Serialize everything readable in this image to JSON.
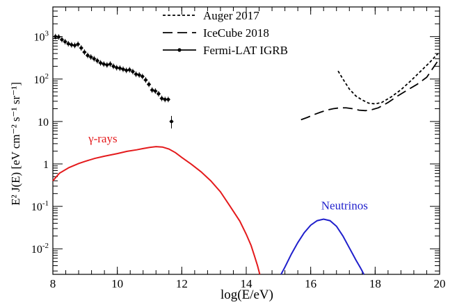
{
  "chart_data": {
    "type": "line",
    "title": "",
    "xlabel": "log(E/eV)",
    "ylabel": "E² J(E)  [eV cm⁻² s⁻¹ sr⁻¹]",
    "xscale": "linear",
    "yscale": "log",
    "xlim": [
      8,
      20
    ],
    "ylim": [
      0.0025,
      5000
    ],
    "grid": false,
    "legend_position": "top-center",
    "x_ticks": [
      {
        "value": 8,
        "label": "8"
      },
      {
        "value": 10,
        "label": "10"
      },
      {
        "value": 12,
        "label": "12"
      },
      {
        "value": 14,
        "label": "14"
      },
      {
        "value": 16,
        "label": "16"
      },
      {
        "value": 18,
        "label": "18"
      },
      {
        "value": 20,
        "label": "20"
      }
    ],
    "y_ticks": [
      {
        "value": 0.01,
        "base": "10",
        "exp": "-2"
      },
      {
        "value": 0.1,
        "base": "10",
        "exp": "-1"
      },
      {
        "value": 1,
        "base": "1",
        "exp": ""
      },
      {
        "value": 10,
        "base": "10",
        "exp": ""
      },
      {
        "value": 100,
        "base": "10",
        "exp": "2"
      },
      {
        "value": 1000,
        "base": "10",
        "exp": "3"
      }
    ],
    "legend": [
      {
        "label": "Auger 2017",
        "style": "dotted"
      },
      {
        "label": "IceCube 2018",
        "style": "dashed"
      },
      {
        "label": "Fermi-LAT IGRB",
        "style": "points"
      }
    ],
    "annotations": [
      {
        "text": "γ-rays",
        "color": "#e41a1c",
        "x": 9.55,
        "y": 3.2
      },
      {
        "text": "Neutrinos",
        "color": "#1f1fcc",
        "x": 17.05,
        "y": 0.085
      }
    ],
    "series": [
      {
        "name": "γ-rays",
        "color": "#e41a1c",
        "style": "solid",
        "x": [
          8.0,
          8.2,
          8.5,
          8.8,
          9.0,
          9.3,
          9.6,
          10.0,
          10.3,
          10.6,
          10.8,
          11.0,
          11.2,
          11.4,
          11.6,
          11.8,
          12.0,
          12.3,
          12.6,
          12.9,
          13.2,
          13.5,
          13.8,
          14.0,
          14.15,
          14.25,
          14.35,
          14.42
        ],
        "y": [
          0.4,
          0.6,
          0.82,
          1.02,
          1.15,
          1.35,
          1.52,
          1.75,
          1.98,
          2.15,
          2.3,
          2.45,
          2.55,
          2.5,
          2.25,
          1.85,
          1.42,
          0.98,
          0.65,
          0.4,
          0.22,
          0.1,
          0.045,
          0.022,
          0.012,
          0.007,
          0.004,
          0.0025
        ]
      },
      {
        "name": "Neutrinos",
        "color": "#1f1fcc",
        "style": "solid",
        "x": [
          15.08,
          15.2,
          15.4,
          15.6,
          15.8,
          16.0,
          16.2,
          16.4,
          16.6,
          16.8,
          17.0,
          17.2,
          17.4,
          17.55,
          17.65
        ],
        "y": [
          0.0025,
          0.0037,
          0.0075,
          0.014,
          0.024,
          0.036,
          0.046,
          0.05,
          0.046,
          0.034,
          0.02,
          0.0105,
          0.0055,
          0.0035,
          0.0025
        ]
      },
      {
        "name": "Auger 2017",
        "color": "#000000",
        "style": "dotted",
        "x": [
          16.85,
          17.0,
          17.2,
          17.4,
          17.6,
          17.8,
          18.0,
          18.2,
          18.5,
          18.8,
          19.1,
          19.4,
          19.7,
          19.95
        ],
        "y": [
          155,
          100,
          58,
          40,
          32,
          27,
          26,
          28,
          38,
          56,
          90,
          150,
          250,
          400
        ]
      },
      {
        "name": "IceCube 2018",
        "color": "#000000",
        "style": "dashed",
        "x": [
          15.7,
          15.9,
          16.1,
          16.3,
          16.5,
          16.7,
          16.9,
          17.1,
          17.3,
          17.5,
          17.7,
          17.9,
          18.1,
          18.4,
          18.7,
          19.0,
          19.3,
          19.6,
          19.95
        ],
        "y": [
          11,
          12.5,
          14.5,
          16.5,
          18.5,
          20,
          21,
          21,
          20,
          18.5,
          18,
          19,
          21,
          28,
          40,
          55,
          75,
          110,
          270
        ]
      }
    ],
    "points": {
      "name": "Fermi-LAT IGRB",
      "x": [
        8.08,
        8.18,
        8.28,
        8.38,
        8.48,
        8.58,
        8.68,
        8.78,
        8.88,
        8.98,
        9.08,
        9.18,
        9.28,
        9.38,
        9.48,
        9.58,
        9.68,
        9.78,
        9.88,
        9.98,
        10.08,
        10.18,
        10.28,
        10.38,
        10.48,
        10.58,
        10.68,
        10.78,
        10.88,
        10.98,
        11.08,
        11.18,
        11.28,
        11.38,
        11.48,
        11.58,
        11.68
      ],
      "y": [
        1000,
        980,
        850,
        760,
        680,
        640,
        620,
        660,
        540,
        430,
        360,
        330,
        300,
        270,
        240,
        225,
        215,
        225,
        200,
        185,
        180,
        170,
        160,
        165,
        150,
        130,
        125,
        115,
        95,
        75,
        55,
        52,
        45,
        35,
        33,
        33,
        10
      ]
    }
  }
}
